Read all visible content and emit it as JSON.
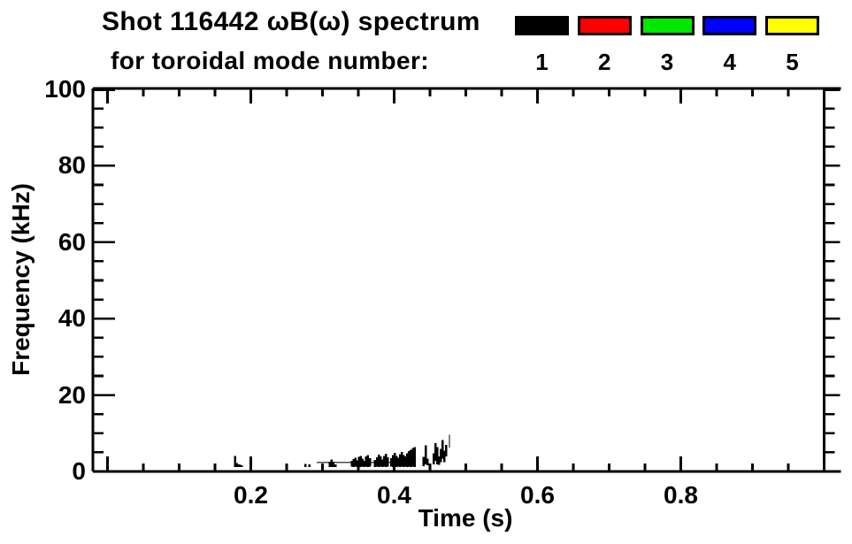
{
  "title": {
    "line1": "Shot 116442 ωB(ω) spectrum",
    "line2": "for toroidal mode number:"
  },
  "legend": {
    "items": [
      {
        "label": "1",
        "color": "#000000"
      },
      {
        "label": "2",
        "color": "#ff0000"
      },
      {
        "label": "3",
        "color": "#00e800"
      },
      {
        "label": "4",
        "color": "#0000ff"
      },
      {
        "label": "5",
        "color": "#ffff00"
      }
    ]
  },
  "chart_data": {
    "type": "scatter",
    "subtype": "mode-spectrogram",
    "shot": "116442",
    "title": "Shot 116442 ωB(ω) spectrum for toroidal mode number: 1 2 3 4 5",
    "xlabel": "Time (s)",
    "ylabel": "Frequency (kHz)",
    "xlim": [
      -0.02,
      1.02
    ],
    "ylim": [
      0,
      100
    ],
    "grid": false,
    "legend_position": "top-right",
    "x_major_ticks": [
      0,
      0.2,
      0.4,
      0.6,
      0.8,
      1.0
    ],
    "x_labeled_ticks": [
      {
        "v": 0.2,
        "label": "0.2"
      },
      {
        "v": 0.4,
        "label": "0.4"
      },
      {
        "v": 0.6,
        "label": "0.6"
      },
      {
        "v": 0.8,
        "label": "0.8"
      }
    ],
    "x_minor_step": 0.05,
    "y_major_ticks": [
      {
        "v": 0,
        "label": "0"
      },
      {
        "v": 20,
        "label": "20"
      },
      {
        "v": 40,
        "label": "40"
      },
      {
        "v": 60,
        "label": "60"
      },
      {
        "v": 80,
        "label": "80"
      },
      {
        "v": 100,
        "label": "100"
      }
    ],
    "y_minor_step": 5,
    "series": [
      {
        "name": "n=1",
        "color": "#000000",
        "baseline_band": {
          "t0": 0.292,
          "t1": 0.43,
          "f0": 2.2,
          "f1": 2.55
        },
        "segments": [
          [
            0.178,
            1.2,
            4.0
          ],
          [
            0.1805,
            1.2,
            2.2
          ],
          [
            0.184,
            1.1,
            1.8
          ],
          [
            0.187,
            1.2,
            1.6
          ],
          [
            0.276,
            1.2,
            2.0
          ],
          [
            0.282,
            1.2,
            1.8
          ],
          [
            0.31,
            1.2,
            2.6
          ],
          [
            0.3125,
            1.2,
            3.1
          ],
          [
            0.315,
            1.2,
            2.6
          ],
          [
            0.318,
            1.1,
            1.9
          ],
          [
            0.341,
            1.3,
            2.8
          ],
          [
            0.3435,
            1.2,
            3.2
          ],
          [
            0.346,
            1.3,
            3.6
          ],
          [
            0.3485,
            1.2,
            2.9
          ],
          [
            0.351,
            1.3,
            3.8
          ],
          [
            0.3535,
            1.2,
            4.1
          ],
          [
            0.356,
            1.3,
            3.3
          ],
          [
            0.3585,
            1.2,
            2.8
          ],
          [
            0.361,
            1.3,
            3.9
          ],
          [
            0.3635,
            1.2,
            4.3
          ],
          [
            0.366,
            1.3,
            3.5
          ],
          [
            0.3735,
            1.2,
            3.0
          ],
          [
            0.376,
            1.3,
            3.7
          ],
          [
            0.3785,
            1.2,
            4.4
          ],
          [
            0.381,
            1.3,
            3.9
          ],
          [
            0.3835,
            1.2,
            3.1
          ],
          [
            0.386,
            1.3,
            4.1
          ],
          [
            0.3885,
            1.2,
            4.6
          ],
          [
            0.391,
            1.3,
            3.7
          ],
          [
            0.396,
            1.3,
            3.5
          ],
          [
            0.3985,
            1.2,
            4.3
          ],
          [
            0.401,
            1.3,
            4.9
          ],
          [
            0.4035,
            1.2,
            4.1
          ],
          [
            0.406,
            1.3,
            3.6
          ],
          [
            0.4085,
            1.2,
            4.5
          ],
          [
            0.411,
            1.3,
            5.1
          ],
          [
            0.4135,
            1.2,
            4.3
          ],
          [
            0.416,
            1.3,
            3.9
          ],
          [
            0.4185,
            1.2,
            4.7
          ],
          [
            0.421,
            1.3,
            5.3
          ],
          [
            0.4235,
            1.2,
            5.7
          ],
          [
            0.426,
            1.3,
            6.1
          ],
          [
            0.4285,
            1.2,
            6.4
          ],
          [
            0.441,
            1.4,
            3.8
          ],
          [
            0.444,
            1.9,
            6.8
          ],
          [
            0.4465,
            1.6,
            3.4
          ],
          [
            0.455,
            1.9,
            4.8
          ],
          [
            0.4575,
            2.8,
            7.4
          ],
          [
            0.46,
            1.9,
            6.4
          ],
          [
            0.4625,
            1.7,
            3.9
          ],
          [
            0.465,
            2.4,
            5.9
          ],
          [
            0.4675,
            3.4,
            8.2
          ],
          [
            0.47,
            2.4,
            5.4
          ],
          [
            0.4725,
            3.9,
            6.9
          ],
          [
            0.477,
            6.3,
            9.6,
            1.2
          ]
        ]
      },
      {
        "name": "n=2",
        "color": "#ff0000",
        "segments": []
      },
      {
        "name": "n=3",
        "color": "#00e800",
        "segments": []
      },
      {
        "name": "n=4",
        "color": "#0000ff",
        "segments": []
      },
      {
        "name": "n=5",
        "color": "#ffff00",
        "segments": []
      }
    ]
  }
}
